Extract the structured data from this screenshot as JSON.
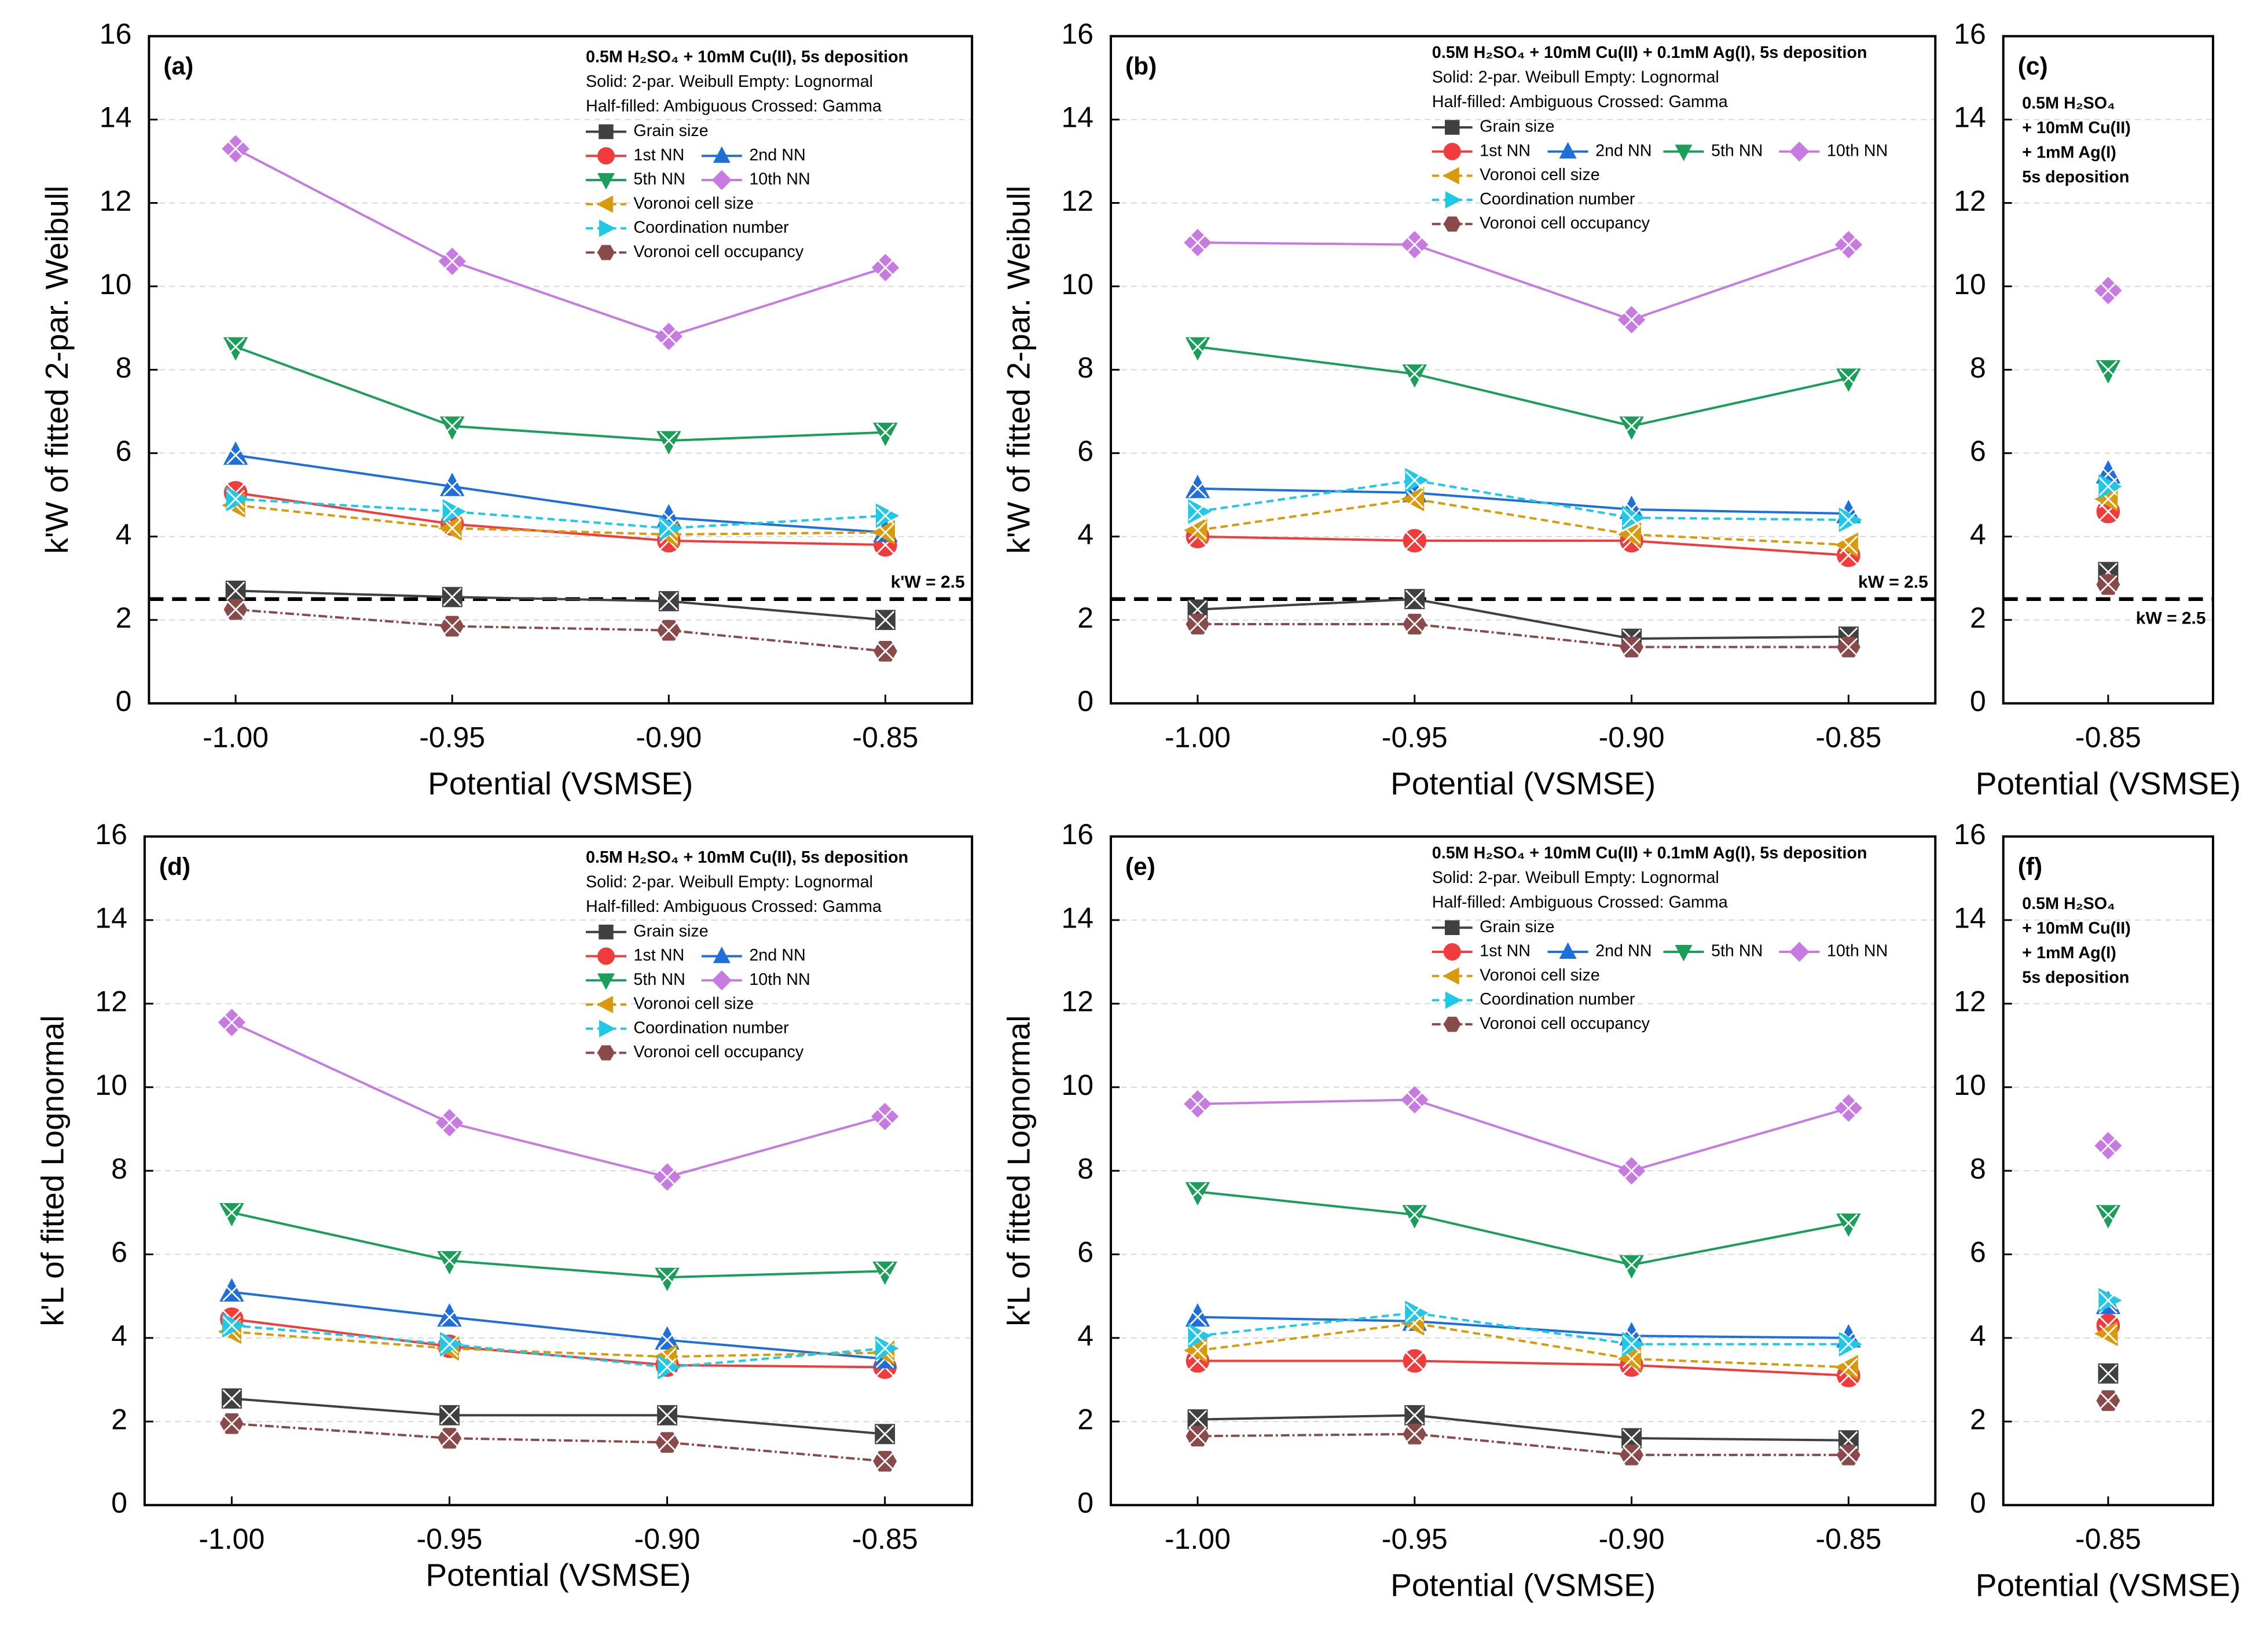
{
  "chart_data": [
    {
      "type": "line",
      "panel_label": "(a)",
      "notes": [
        "0.5M H₂SO₄ + 10mM Cu(II),  5s deposition",
        "Solid: 2-par. Weibull   Empty: Lognormal",
        "Half-filled: Ambiguous   Crossed: Gamma"
      ],
      "y_label": "k'W of fitted 2-par. Weibull",
      "x_label": "Potential (VSMSE)",
      "x": [
        -1,
        -0.95,
        -0.9,
        -0.85
      ],
      "xlim": [
        -1.02,
        -0.83
      ],
      "xticks": [
        {
          "value": -1,
          "label": "-1.00"
        },
        -0.95,
        {
          "value": -0.9,
          "label": "-0.90"
        },
        -0.85
      ],
      "ylim": [
        0,
        16
      ],
      "yticks": [
        0,
        2,
        4,
        6,
        8,
        10,
        12,
        14,
        16
      ],
      "grid": true,
      "legend": true,
      "ref_line": {
        "value": 2.5,
        "label": "k'W = 2.5"
      },
      "series": [
        {
          "name": "Grain size",
          "color": "#404040",
          "marker": "square",
          "line_style": "solid",
          "values": [
            2.7,
            2.55,
            2.45,
            2.0
          ]
        },
        {
          "name": "1st NN",
          "color": "#f03c3c",
          "marker": "circle",
          "line_style": "solid",
          "values": [
            5.05,
            4.3,
            3.9,
            3.8
          ]
        },
        {
          "name": "2nd NN",
          "color": "#1e6fd9",
          "marker": "triangle-up",
          "line_style": "solid",
          "values": [
            5.95,
            5.2,
            4.45,
            4.1
          ]
        },
        {
          "name": "5th NN",
          "color": "#1a9e5a",
          "marker": "triangle-down",
          "line_style": "solid",
          "values": [
            8.55,
            6.65,
            6.3,
            6.5
          ]
        },
        {
          "name": "10th NN",
          "color": "#c77be0",
          "marker": "diamond",
          "line_style": "solid",
          "values": [
            13.3,
            10.6,
            8.8,
            10.45
          ]
        },
        {
          "name": "Voronoi cell size",
          "color": "#d99a0a",
          "marker": "triangle-left",
          "line_style": "dashed",
          "values": [
            4.75,
            4.2,
            4.05,
            4.1
          ]
        },
        {
          "name": "Coordination number",
          "color": "#1ec8e6",
          "marker": "triangle-right",
          "line_style": "dashed",
          "values": [
            4.9,
            4.6,
            4.2,
            4.5
          ]
        },
        {
          "name": "Voronoi cell occupancy",
          "color": "#8b4a4a",
          "marker": "hexagon",
          "line_style": "dashdot",
          "values": [
            2.25,
            1.85,
            1.75,
            1.25
          ]
        }
      ]
    },
    {
      "type": "line",
      "panel_label": "(b)",
      "notes": [
        "0.5M H₂SO₄ + 10mM Cu(II) + 0.1mM Ag(I),  5s deposition",
        "Solid: 2-par. Weibull   Empty: Lognormal",
        "Half-filled: Ambiguous   Crossed: Gamma"
      ],
      "y_label": "k'W of fitted 2-par. Weibull",
      "x_label": "Potential (VSMSE)",
      "x": [
        -1,
        -0.95,
        -0.9,
        -0.85
      ],
      "xlim": [
        -1.02,
        -0.83
      ],
      "xticks": [
        {
          "value": -1,
          "label": "-1.00"
        },
        -0.95,
        {
          "value": -0.9,
          "label": "-0.90"
        },
        -0.85
      ],
      "ylim": [
        0,
        16
      ],
      "yticks": [
        0,
        2,
        4,
        6,
        8,
        10,
        12,
        14,
        16
      ],
      "grid": true,
      "legend": true,
      "ref_line": {
        "value": 2.5,
        "label": "kW = 2.5"
      },
      "series": [
        {
          "name": "Grain size",
          "color": "#404040",
          "marker": "square",
          "line_style": "solid",
          "values": [
            2.25,
            2.5,
            1.55,
            1.6
          ]
        },
        {
          "name": "1st NN",
          "color": "#f03c3c",
          "marker": "circle",
          "line_style": "solid",
          "values": [
            4.0,
            3.9,
            3.9,
            3.55
          ]
        },
        {
          "name": "2nd NN",
          "color": "#1e6fd9",
          "marker": "triangle-up",
          "line_style": "solid",
          "values": [
            5.15,
            5.05,
            4.65,
            4.55
          ]
        },
        {
          "name": "5th NN",
          "color": "#1a9e5a",
          "marker": "triangle-down",
          "line_style": "solid",
          "values": [
            8.55,
            7.9,
            6.65,
            7.8
          ]
        },
        {
          "name": "10th NN",
          "color": "#c77be0",
          "marker": "diamond",
          "line_style": "solid",
          "values": [
            11.05,
            11.0,
            9.2,
            11.0
          ]
        },
        {
          "name": "Voronoi cell size",
          "color": "#d99a0a",
          "marker": "triangle-left",
          "line_style": "dashed",
          "values": [
            4.15,
            4.9,
            4.05,
            3.8
          ]
        },
        {
          "name": "Coordination number",
          "color": "#1ec8e6",
          "marker": "triangle-right",
          "line_style": "dashed",
          "values": [
            4.6,
            5.35,
            4.45,
            4.4
          ]
        },
        {
          "name": "Voronoi cell occupancy",
          "color": "#8b4a4a",
          "marker": "hexagon",
          "line_style": "dashdot",
          "values": [
            1.9,
            1.9,
            1.35,
            1.35
          ]
        }
      ]
    },
    {
      "type": "line",
      "panel_label": "(c)",
      "notes": [
        "0.5M H₂SO₄",
        "+ 10mM Cu(II)",
        "+ 1mM Ag(I)",
        "5s deposition"
      ],
      "x_label": "Potential (VSMSE)",
      "x": [
        -0.85
      ],
      "xlim": [
        -0.9,
        -0.8
      ],
      "xticks": [
        -0.85
      ],
      "ylim": [
        0,
        16
      ],
      "yticks": [
        0,
        2,
        4,
        6,
        8,
        10,
        12,
        14,
        16
      ],
      "grid": true,
      "legend": false,
      "ref_line": {
        "value": 2.5,
        "label": "kW = 2.5"
      },
      "series": [
        {
          "color": "#404040",
          "marker": "square",
          "line_style": "solid",
          "values": [
            3.15
          ]
        },
        {
          "color": "#f03c3c",
          "marker": "circle",
          "line_style": "solid",
          "values": [
            4.6
          ]
        },
        {
          "color": "#1e6fd9",
          "marker": "triangle-up",
          "line_style": "solid",
          "values": [
            5.5
          ]
        },
        {
          "color": "#1a9e5a",
          "marker": "triangle-down",
          "line_style": "solid",
          "values": [
            8.0
          ]
        },
        {
          "color": "#c77be0",
          "marker": "diamond",
          "line_style": "solid",
          "values": [
            9.9
          ]
        },
        {
          "color": "#d99a0a",
          "marker": "triangle-left",
          "line_style": "dashed",
          "values": [
            4.9
          ]
        },
        {
          "color": "#1ec8e6",
          "marker": "triangle-right",
          "line_style": "dashed",
          "values": [
            5.2
          ]
        },
        {
          "color": "#8b4a4a",
          "marker": "hexagon",
          "line_style": "dashdot",
          "values": [
            2.85
          ]
        }
      ]
    },
    {
      "type": "line",
      "panel_label": "(d)",
      "notes": [
        "0.5M H₂SO₄ + 10mM Cu(II),  5s deposition",
        "Solid: 2-par. Weibull   Empty: Lognormal",
        "Half-filled: Ambiguous   Crossed: Gamma"
      ],
      "y_label": "k'L of fitted Lognormal",
      "x_label": "Potential (VSMSE)",
      "x": [
        -1,
        -0.95,
        -0.9,
        -0.85
      ],
      "xlim": [
        -1.02,
        -0.83
      ],
      "xticks": [
        {
          "value": -1,
          "label": "-1.00"
        },
        -0.95,
        {
          "value": -0.9,
          "label": "-0.90"
        },
        -0.85
      ],
      "ylim": [
        0,
        16
      ],
      "yticks": [
        0,
        2,
        4,
        6,
        8,
        10,
        12,
        14,
        16
      ],
      "grid": true,
      "legend": true,
      "series": [
        {
          "name": "Grain size",
          "color": "#404040",
          "marker": "square",
          "line_style": "solid",
          "values": [
            2.55,
            2.15,
            2.15,
            1.7
          ]
        },
        {
          "name": "1st NN",
          "color": "#f03c3c",
          "marker": "circle",
          "line_style": "solid",
          "values": [
            4.45,
            3.8,
            3.35,
            3.3
          ]
        },
        {
          "name": "2nd NN",
          "color": "#1e6fd9",
          "marker": "triangle-up",
          "line_style": "solid",
          "values": [
            5.1,
            4.5,
            3.95,
            3.5
          ]
        },
        {
          "name": "5th NN",
          "color": "#1a9e5a",
          "marker": "triangle-down",
          "line_style": "solid",
          "values": [
            7.0,
            5.85,
            5.45,
            5.6
          ]
        },
        {
          "name": "10th NN",
          "color": "#c77be0",
          "marker": "diamond",
          "line_style": "solid",
          "values": [
            11.55,
            9.15,
            7.85,
            9.3
          ]
        },
        {
          "name": "Voronoi cell size",
          "color": "#d99a0a",
          "marker": "triangle-left",
          "line_style": "dashed",
          "values": [
            4.15,
            3.75,
            3.55,
            3.65
          ]
        },
        {
          "name": "Coordination number",
          "color": "#1ec8e6",
          "marker": "triangle-right",
          "line_style": "dashed",
          "values": [
            4.3,
            3.85,
            3.3,
            3.75
          ]
        },
        {
          "name": "Voronoi cell occupancy",
          "color": "#8b4a4a",
          "marker": "hexagon",
          "line_style": "dashdot",
          "values": [
            1.95,
            1.6,
            1.5,
            1.05
          ]
        }
      ]
    },
    {
      "type": "line",
      "panel_label": "(e)",
      "notes": [
        "0.5M H₂SO₄ + 10mM Cu(II) + 0.1mM Ag(I),  5s deposition",
        "Solid: 2-par. Weibull   Empty: Lognormal",
        "Half-filled: Ambiguous   Crossed: Gamma"
      ],
      "y_label": "k'L of fitted Lognormal",
      "x_label": "Potential (VSMSE)",
      "x": [
        -1,
        -0.95,
        -0.9,
        -0.85
      ],
      "xlim": [
        -1.02,
        -0.83
      ],
      "xticks": [
        {
          "value": -1,
          "label": "-1.00"
        },
        -0.95,
        {
          "value": -0.9,
          "label": "-0.90"
        },
        -0.85
      ],
      "ylim": [
        0,
        16
      ],
      "yticks": [
        0,
        2,
        4,
        6,
        8,
        10,
        12,
        14,
        16
      ],
      "grid": true,
      "legend": true,
      "series": [
        {
          "name": "Grain size",
          "color": "#404040",
          "marker": "square",
          "line_style": "solid",
          "values": [
            2.05,
            2.15,
            1.6,
            1.55
          ]
        },
        {
          "name": "1st NN",
          "color": "#f03c3c",
          "marker": "circle",
          "line_style": "solid",
          "values": [
            3.45,
            3.45,
            3.35,
            3.1
          ]
        },
        {
          "name": "2nd NN",
          "color": "#1e6fd9",
          "marker": "triangle-up",
          "line_style": "solid",
          "values": [
            4.5,
            4.4,
            4.05,
            4.0
          ]
        },
        {
          "name": "5th NN",
          "color": "#1a9e5a",
          "marker": "triangle-down",
          "line_style": "solid",
          "values": [
            7.5,
            6.95,
            5.75,
            6.75
          ]
        },
        {
          "name": "10th NN",
          "color": "#c77be0",
          "marker": "diamond",
          "line_style": "solid",
          "values": [
            9.6,
            9.7,
            8.0,
            9.5
          ]
        },
        {
          "name": "Voronoi cell size",
          "color": "#d99a0a",
          "marker": "triangle-left",
          "line_style": "dashed",
          "values": [
            3.7,
            4.35,
            3.5,
            3.3
          ]
        },
        {
          "name": "Coordination number",
          "color": "#1ec8e6",
          "marker": "triangle-right",
          "line_style": "dashed",
          "values": [
            4.05,
            4.6,
            3.85,
            3.85
          ]
        },
        {
          "name": "Voronoi cell occupancy",
          "color": "#8b4a4a",
          "marker": "hexagon",
          "line_style": "dashdot",
          "values": [
            1.65,
            1.7,
            1.2,
            1.2
          ]
        }
      ]
    },
    {
      "type": "line",
      "panel_label": "(f)",
      "notes": [
        "0.5M H₂SO₄",
        "+ 10mM Cu(II)",
        "+ 1mM Ag(I)",
        "5s deposition"
      ],
      "x_label": "Potential (VSMSE)",
      "x": [
        -0.85
      ],
      "xlim": [
        -0.9,
        -0.8
      ],
      "xticks": [
        -0.85
      ],
      "ylim": [
        0,
        16
      ],
      "yticks": [
        0,
        2,
        4,
        6,
        8,
        10,
        12,
        14,
        16
      ],
      "grid": true,
      "legend": false,
      "series": [
        {
          "color": "#404040",
          "marker": "square",
          "line_style": "solid",
          "values": [
            3.15
          ]
        },
        {
          "color": "#f03c3c",
          "marker": "circle",
          "line_style": "solid",
          "values": [
            4.3
          ]
        },
        {
          "color": "#1e6fd9",
          "marker": "triangle-up",
          "line_style": "solid",
          "values": [
            4.8
          ]
        },
        {
          "color": "#1a9e5a",
          "marker": "triangle-down",
          "line_style": "solid",
          "values": [
            6.95
          ]
        },
        {
          "color": "#c77be0",
          "marker": "diamond",
          "line_style": "solid",
          "values": [
            8.6
          ]
        },
        {
          "color": "#d99a0a",
          "marker": "triangle-left",
          "line_style": "dashed",
          "values": [
            4.1
          ]
        },
        {
          "color": "#1ec8e6",
          "marker": "triangle-right",
          "line_style": "dashed",
          "values": [
            4.9
          ]
        },
        {
          "color": "#8b4a4a",
          "marker": "hexagon",
          "line_style": "dashdot",
          "values": [
            2.5
          ]
        }
      ]
    }
  ]
}
